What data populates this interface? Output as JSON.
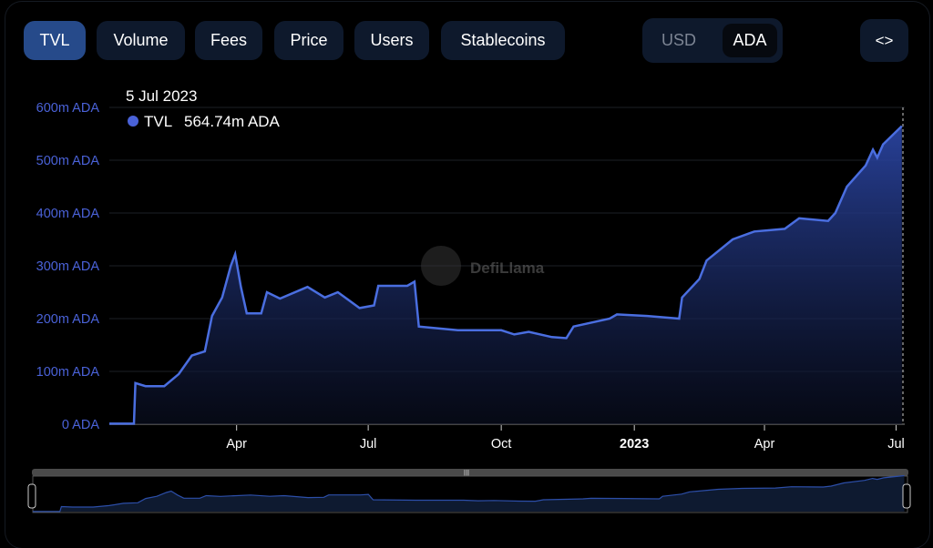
{
  "tabs": [
    {
      "label": "TVL",
      "active": true
    },
    {
      "label": "Volume"
    },
    {
      "label": "Fees"
    },
    {
      "label": "Price"
    },
    {
      "label": "Users"
    },
    {
      "label": "Stablecoins"
    }
  ],
  "currency_toggle": {
    "options": [
      "USD",
      "ADA"
    ],
    "selected": "ADA"
  },
  "embed_button": {
    "label": "<>",
    "icon": "code-icon"
  },
  "tooltip": {
    "date": "5 Jul 2023",
    "series": "TVL",
    "value": "564.74m ADA"
  },
  "watermark": "DefiLlama",
  "colors": {
    "line": "#4a6ee0",
    "accent": "#264a8a",
    "button": "#0e192c",
    "axis_label": "#4a62d8"
  },
  "chart_data": {
    "type": "area",
    "series": [
      {
        "name": "TVL",
        "unit": "m ADA",
        "points": [
          [
            "2022-01-03",
            1
          ],
          [
            "2022-01-20",
            1
          ],
          [
            "2022-01-21",
            78
          ],
          [
            "2022-01-28",
            72
          ],
          [
            "2022-02-10",
            72
          ],
          [
            "2022-02-20",
            95
          ],
          [
            "2022-03-01",
            130
          ],
          [
            "2022-03-10",
            138
          ],
          [
            "2022-03-15",
            205
          ],
          [
            "2022-03-22",
            240
          ],
          [
            "2022-03-28",
            300
          ],
          [
            "2022-03-31",
            322
          ],
          [
            "2022-04-04",
            260
          ],
          [
            "2022-04-08",
            210
          ],
          [
            "2022-04-18",
            210
          ],
          [
            "2022-04-22",
            250
          ],
          [
            "2022-05-01",
            238
          ],
          [
            "2022-05-20",
            260
          ],
          [
            "2022-06-01",
            240
          ],
          [
            "2022-06-10",
            250
          ],
          [
            "2022-06-25",
            220
          ],
          [
            "2022-07-05",
            225
          ],
          [
            "2022-07-08",
            262
          ],
          [
            "2022-07-28",
            262
          ],
          [
            "2022-08-02",
            270
          ],
          [
            "2022-08-05",
            185
          ],
          [
            "2022-09-01",
            178
          ],
          [
            "2022-10-01",
            178
          ],
          [
            "2022-10-10",
            170
          ],
          [
            "2022-10-20",
            175
          ],
          [
            "2022-11-05",
            165
          ],
          [
            "2022-11-15",
            163
          ],
          [
            "2022-11-20",
            185
          ],
          [
            "2022-12-15",
            200
          ],
          [
            "2022-12-20",
            208
          ],
          [
            "2023-01-10",
            205
          ],
          [
            "2023-02-01",
            200
          ],
          [
            "2023-02-03",
            240
          ],
          [
            "2023-02-15",
            275
          ],
          [
            "2023-02-20",
            310
          ],
          [
            "2023-03-10",
            350
          ],
          [
            "2023-03-25",
            365
          ],
          [
            "2023-04-15",
            370
          ],
          [
            "2023-04-25",
            390
          ],
          [
            "2023-05-15",
            385
          ],
          [
            "2023-05-20",
            400
          ],
          [
            "2023-05-28",
            450
          ],
          [
            "2023-06-10",
            490
          ],
          [
            "2023-06-15",
            520
          ],
          [
            "2023-06-18",
            505
          ],
          [
            "2023-06-22",
            530
          ],
          [
            "2023-07-05",
            564.74
          ]
        ]
      }
    ],
    "y_ticks": [
      "0 ADA",
      "100m ADA",
      "200m ADA",
      "300m ADA",
      "400m ADA",
      "500m ADA",
      "600m ADA"
    ],
    "ylim": [
      0,
      600
    ],
    "x_ticks": [
      {
        "date": "2022-04-01",
        "label": "Apr"
      },
      {
        "date": "2022-07-01",
        "label": "Jul"
      },
      {
        "date": "2022-10-01",
        "label": "Oct"
      },
      {
        "date": "2023-01-01",
        "label": "2023",
        "bold": true
      },
      {
        "date": "2023-04-01",
        "label": "Apr"
      },
      {
        "date": "2023-07-01",
        "label": "Jul"
      }
    ],
    "xlim": [
      "2022-01-03",
      "2023-07-07"
    ],
    "grid": true,
    "navigator": true
  }
}
